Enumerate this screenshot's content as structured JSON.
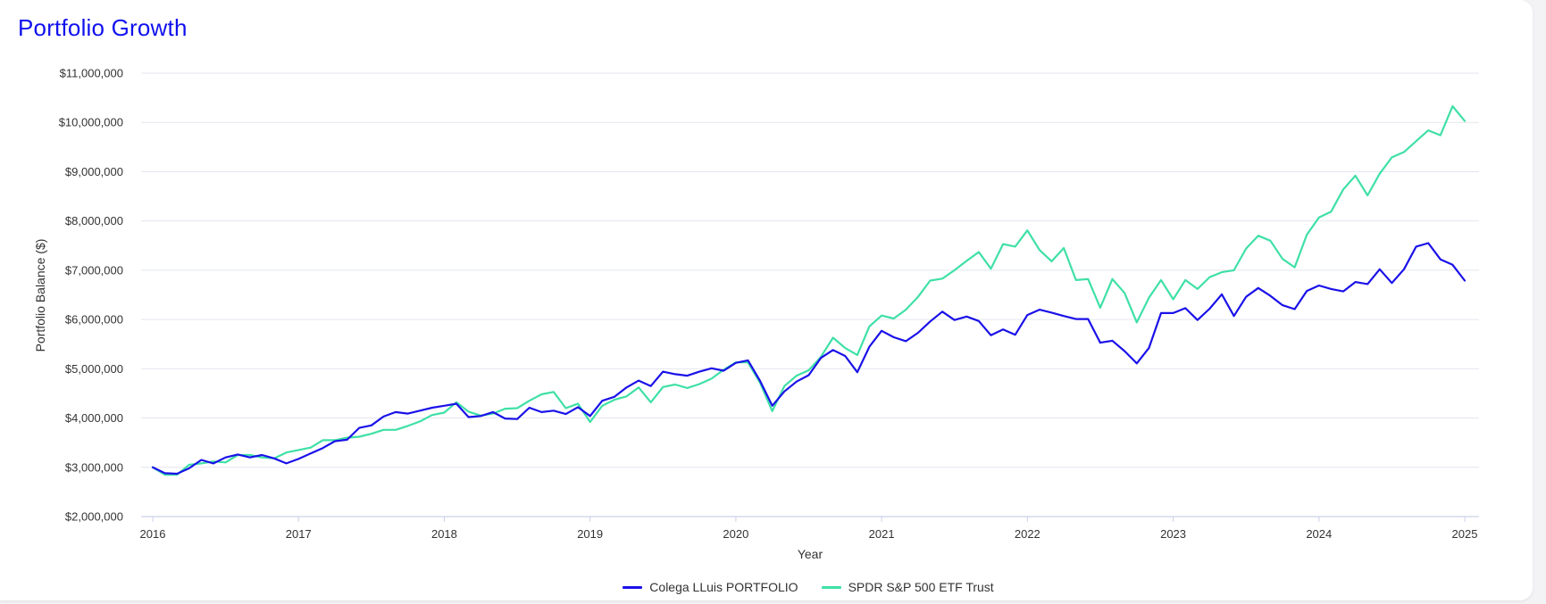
{
  "title": "Portfolio Growth",
  "colors": {
    "portfolio": "#1a11e8",
    "spy": "#3fe0a6",
    "title": "#1010ee",
    "grid": "#e3e6ee",
    "axis": "#c9d2e8"
  },
  "legend": {
    "portfolio_label": "Colega LLuis PORTFOLIO",
    "spy_label": "SPDR S&P 500 ETF Trust"
  },
  "chart_data": {
    "type": "line",
    "xlabel": "Year",
    "ylabel": "Portfolio Balance ($)",
    "xlim": [
      2016,
      2025
    ],
    "ylim": [
      2000000,
      11000000
    ],
    "x_ticks": [
      2016,
      2017,
      2018,
      2019,
      2020,
      2021,
      2022,
      2023,
      2024,
      2025
    ],
    "x_tick_labels": [
      "2016",
      "2017",
      "2018",
      "2019",
      "2020",
      "2021",
      "2022",
      "2023",
      "2024",
      "2025"
    ],
    "y_ticks": [
      2000000,
      3000000,
      4000000,
      5000000,
      6000000,
      7000000,
      8000000,
      9000000,
      10000000,
      11000000
    ],
    "y_tick_labels": [
      "$2,000,000",
      "$3,000,000",
      "$4,000,000",
      "$5,000,000",
      "$6,000,000",
      "$7,000,000",
      "$8,000,000",
      "$9,000,000",
      "$10,000,000",
      "$11,000,000"
    ],
    "grid": true,
    "legend_position": "bottom-center",
    "series": [
      {
        "name": "Colega LLuis PORTFOLIO",
        "points": [
          [
            "2016-01",
            3000000
          ],
          [
            "2016-02",
            2880000
          ],
          [
            "2016-03",
            2870000
          ],
          [
            "2016-04",
            2980000
          ],
          [
            "2016-05",
            3150000
          ],
          [
            "2016-06",
            3080000
          ],
          [
            "2016-07",
            3200000
          ],
          [
            "2016-08",
            3260000
          ],
          [
            "2016-09",
            3200000
          ],
          [
            "2016-10",
            3250000
          ],
          [
            "2016-11",
            3180000
          ],
          [
            "2016-12",
            3080000
          ],
          [
            "2017-01",
            3170000
          ],
          [
            "2017-02",
            3280000
          ],
          [
            "2017-03",
            3390000
          ],
          [
            "2017-04",
            3530000
          ],
          [
            "2017-05",
            3560000
          ],
          [
            "2017-06",
            3800000
          ],
          [
            "2017-07",
            3850000
          ],
          [
            "2017-08",
            4030000
          ],
          [
            "2017-09",
            4120000
          ],
          [
            "2017-10",
            4090000
          ],
          [
            "2017-11",
            4150000
          ],
          [
            "2017-12",
            4210000
          ],
          [
            "2018-01",
            4250000
          ],
          [
            "2018-02",
            4290000
          ],
          [
            "2018-03",
            4020000
          ],
          [
            "2018-04",
            4040000
          ],
          [
            "2018-05",
            4120000
          ],
          [
            "2018-06",
            3990000
          ],
          [
            "2018-07",
            3980000
          ],
          [
            "2018-08",
            4210000
          ],
          [
            "2018-09",
            4120000
          ],
          [
            "2018-10",
            4150000
          ],
          [
            "2018-11",
            4080000
          ],
          [
            "2018-12",
            4220000
          ],
          [
            "2019-01",
            4040000
          ],
          [
            "2019-02",
            4350000
          ],
          [
            "2019-03",
            4430000
          ],
          [
            "2019-04",
            4620000
          ],
          [
            "2019-05",
            4760000
          ],
          [
            "2019-06",
            4650000
          ],
          [
            "2019-07",
            4940000
          ],
          [
            "2019-08",
            4890000
          ],
          [
            "2019-09",
            4860000
          ],
          [
            "2019-10",
            4940000
          ],
          [
            "2019-11",
            5010000
          ],
          [
            "2019-12",
            4960000
          ],
          [
            "2020-01",
            5120000
          ],
          [
            "2020-02",
            5170000
          ],
          [
            "2020-03",
            4750000
          ],
          [
            "2020-04",
            4250000
          ],
          [
            "2020-05",
            4540000
          ],
          [
            "2020-06",
            4740000
          ],
          [
            "2020-07",
            4870000
          ],
          [
            "2020-08",
            5220000
          ],
          [
            "2020-09",
            5380000
          ],
          [
            "2020-10",
            5260000
          ],
          [
            "2020-11",
            4930000
          ],
          [
            "2020-12",
            5450000
          ],
          [
            "2021-01",
            5770000
          ],
          [
            "2021-02",
            5640000
          ],
          [
            "2021-03",
            5560000
          ],
          [
            "2021-04",
            5730000
          ],
          [
            "2021-05",
            5960000
          ],
          [
            "2021-06",
            6160000
          ],
          [
            "2021-07",
            5990000
          ],
          [
            "2021-08",
            6060000
          ],
          [
            "2021-09",
            5970000
          ],
          [
            "2021-10",
            5680000
          ],
          [
            "2021-11",
            5800000
          ],
          [
            "2021-12",
            5690000
          ],
          [
            "2022-01",
            6090000
          ],
          [
            "2022-02",
            6200000
          ],
          [
            "2022-03",
            6140000
          ],
          [
            "2022-04",
            6070000
          ],
          [
            "2022-05",
            6010000
          ],
          [
            "2022-06",
            6010000
          ],
          [
            "2022-07",
            5530000
          ],
          [
            "2022-08",
            5570000
          ],
          [
            "2022-09",
            5360000
          ],
          [
            "2022-10",
            5110000
          ],
          [
            "2022-11",
            5420000
          ],
          [
            "2022-12",
            6130000
          ],
          [
            "2023-01",
            6130000
          ],
          [
            "2023-02",
            6230000
          ],
          [
            "2023-03",
            5990000
          ],
          [
            "2023-04",
            6220000
          ],
          [
            "2023-05",
            6510000
          ],
          [
            "2023-06",
            6070000
          ],
          [
            "2023-07",
            6460000
          ],
          [
            "2023-08",
            6640000
          ],
          [
            "2023-09",
            6480000
          ],
          [
            "2023-10",
            6290000
          ],
          [
            "2023-11",
            6210000
          ],
          [
            "2023-12",
            6580000
          ],
          [
            "2024-01",
            6690000
          ],
          [
            "2024-02",
            6620000
          ],
          [
            "2024-03",
            6570000
          ],
          [
            "2024-04",
            6760000
          ],
          [
            "2024-05",
            6720000
          ],
          [
            "2024-06",
            7020000
          ],
          [
            "2024-07",
            6740000
          ],
          [
            "2024-08",
            7020000
          ],
          [
            "2024-09",
            7480000
          ],
          [
            "2024-10",
            7550000
          ],
          [
            "2024-11",
            7220000
          ],
          [
            "2024-12",
            7110000
          ],
          [
            "2025-01",
            6790000
          ]
        ]
      },
      {
        "name": "SPDR S&P 500 ETF Trust",
        "points": [
          [
            "2016-01",
            3000000
          ],
          [
            "2016-02",
            2850000
          ],
          [
            "2016-03",
            2850000
          ],
          [
            "2016-04",
            3050000
          ],
          [
            "2016-05",
            3080000
          ],
          [
            "2016-06",
            3120000
          ],
          [
            "2016-07",
            3100000
          ],
          [
            "2016-08",
            3250000
          ],
          [
            "2016-09",
            3250000
          ],
          [
            "2016-10",
            3200000
          ],
          [
            "2016-11",
            3180000
          ],
          [
            "2016-12",
            3300000
          ],
          [
            "2017-01",
            3350000
          ],
          [
            "2017-02",
            3400000
          ],
          [
            "2017-03",
            3550000
          ],
          [
            "2017-04",
            3550000
          ],
          [
            "2017-05",
            3600000
          ],
          [
            "2017-06",
            3620000
          ],
          [
            "2017-07",
            3680000
          ],
          [
            "2017-08",
            3760000
          ],
          [
            "2017-09",
            3760000
          ],
          [
            "2017-10",
            3840000
          ],
          [
            "2017-11",
            3930000
          ],
          [
            "2017-12",
            4060000
          ],
          [
            "2018-01",
            4110000
          ],
          [
            "2018-02",
            4320000
          ],
          [
            "2018-03",
            4130000
          ],
          [
            "2018-04",
            4050000
          ],
          [
            "2018-05",
            4090000
          ],
          [
            "2018-06",
            4190000
          ],
          [
            "2018-07",
            4200000
          ],
          [
            "2018-08",
            4350000
          ],
          [
            "2018-09",
            4480000
          ],
          [
            "2018-10",
            4530000
          ],
          [
            "2018-11",
            4200000
          ],
          [
            "2018-12",
            4290000
          ],
          [
            "2019-01",
            3920000
          ],
          [
            "2019-02",
            4250000
          ],
          [
            "2019-03",
            4370000
          ],
          [
            "2019-04",
            4440000
          ],
          [
            "2019-05",
            4620000
          ],
          [
            "2019-06",
            4320000
          ],
          [
            "2019-07",
            4630000
          ],
          [
            "2019-08",
            4680000
          ],
          [
            "2019-09",
            4610000
          ],
          [
            "2019-10",
            4690000
          ],
          [
            "2019-11",
            4800000
          ],
          [
            "2019-12",
            4980000
          ],
          [
            "2020-01",
            5130000
          ],
          [
            "2020-02",
            5130000
          ],
          [
            "2020-03",
            4710000
          ],
          [
            "2020-04",
            4140000
          ],
          [
            "2020-05",
            4650000
          ],
          [
            "2020-06",
            4860000
          ],
          [
            "2020-07",
            4970000
          ],
          [
            "2020-08",
            5240000
          ],
          [
            "2020-09",
            5630000
          ],
          [
            "2020-10",
            5420000
          ],
          [
            "2020-11",
            5280000
          ],
          [
            "2020-12",
            5860000
          ],
          [
            "2021-01",
            6080000
          ],
          [
            "2021-02",
            6020000
          ],
          [
            "2021-03",
            6200000
          ],
          [
            "2021-04",
            6460000
          ],
          [
            "2021-05",
            6790000
          ],
          [
            "2021-06",
            6830000
          ],
          [
            "2021-07",
            7000000
          ],
          [
            "2021-08",
            7190000
          ],
          [
            "2021-09",
            7370000
          ],
          [
            "2021-10",
            7030000
          ],
          [
            "2021-11",
            7530000
          ],
          [
            "2021-12",
            7480000
          ],
          [
            "2022-01",
            7810000
          ],
          [
            "2022-02",
            7410000
          ],
          [
            "2022-03",
            7180000
          ],
          [
            "2022-04",
            7450000
          ],
          [
            "2022-05",
            6800000
          ],
          [
            "2022-06",
            6820000
          ],
          [
            "2022-07",
            6240000
          ],
          [
            "2022-08",
            6820000
          ],
          [
            "2022-09",
            6540000
          ],
          [
            "2022-10",
            5940000
          ],
          [
            "2022-11",
            6440000
          ],
          [
            "2022-12",
            6800000
          ],
          [
            "2023-01",
            6410000
          ],
          [
            "2023-02",
            6800000
          ],
          [
            "2023-03",
            6620000
          ],
          [
            "2023-04",
            6860000
          ],
          [
            "2023-05",
            6960000
          ],
          [
            "2023-06",
            7000000
          ],
          [
            "2023-07",
            7440000
          ],
          [
            "2023-08",
            7700000
          ],
          [
            "2023-09",
            7600000
          ],
          [
            "2023-10",
            7230000
          ],
          [
            "2023-11",
            7060000
          ],
          [
            "2023-12",
            7720000
          ],
          [
            "2024-01",
            8070000
          ],
          [
            "2024-02",
            8190000
          ],
          [
            "2024-03",
            8640000
          ],
          [
            "2024-04",
            8920000
          ],
          [
            "2024-05",
            8520000
          ],
          [
            "2024-06",
            8960000
          ],
          [
            "2024-07",
            9290000
          ],
          [
            "2024-08",
            9400000
          ],
          [
            "2024-09",
            9620000
          ],
          [
            "2024-10",
            9840000
          ],
          [
            "2024-11",
            9740000
          ],
          [
            "2024-12",
            10330000
          ],
          [
            "2025-01",
            10030000
          ]
        ]
      }
    ]
  }
}
